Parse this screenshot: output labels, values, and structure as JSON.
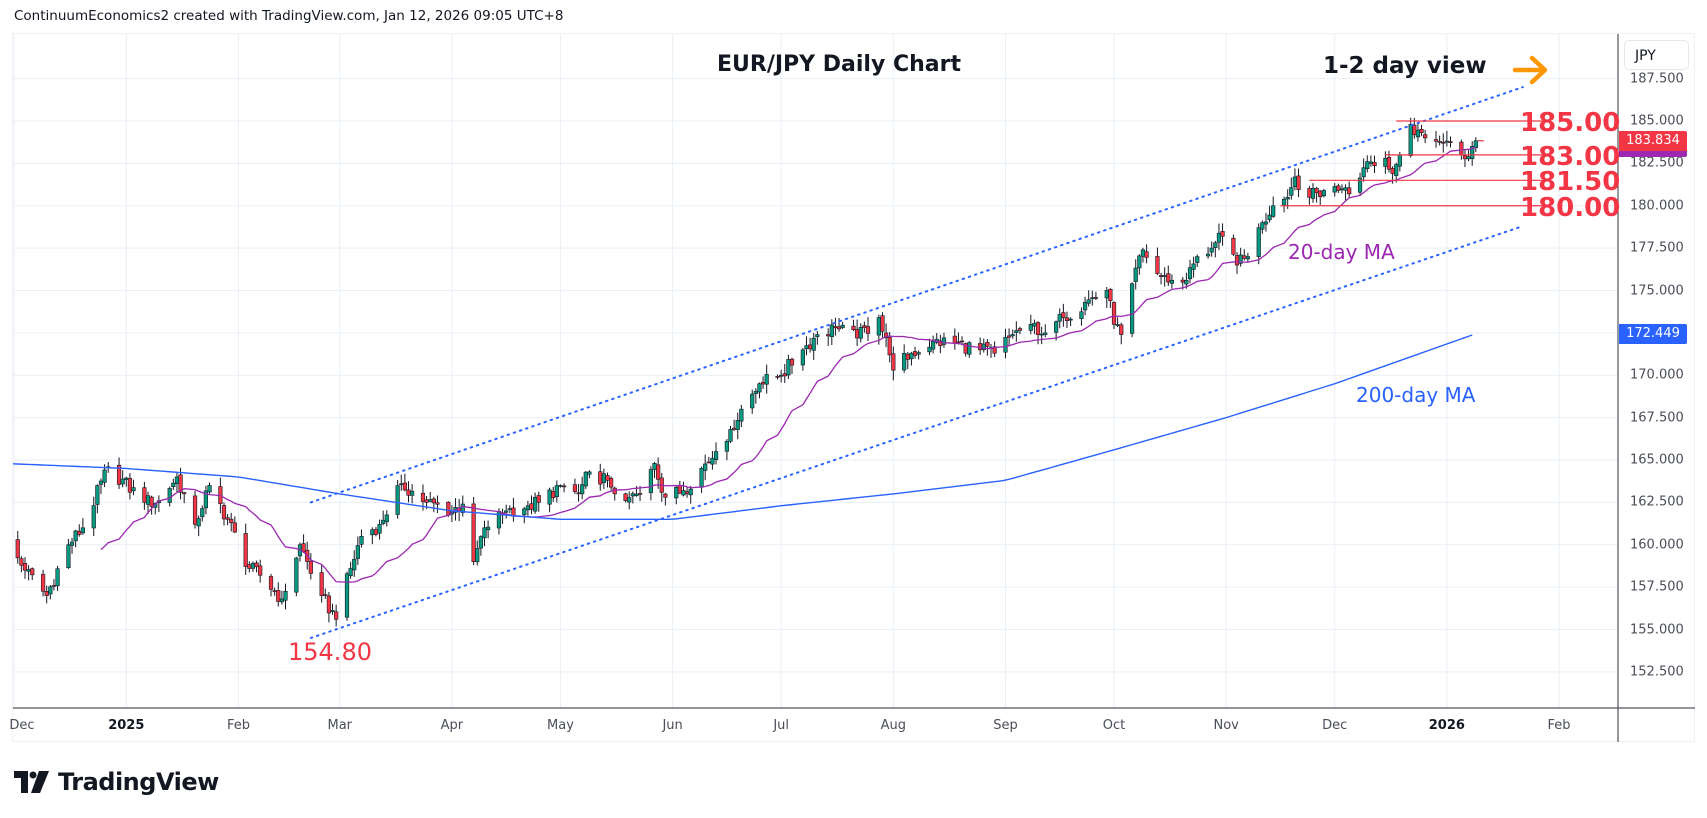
{
  "header": {
    "text": "ContinuumEconomics2 created with TradingView.com, Jan 12, 2026 09:05 UTC+8"
  },
  "footer": {
    "brand": "TradingView"
  },
  "colors": {
    "up": "#089981",
    "down": "#f23645",
    "ma20": "#9c27b0",
    "ma200": "#2962ff",
    "level": "#f23645",
    "channel": "#2962ff",
    "arrow": "#ff9800",
    "grid": "#e9eff6"
  },
  "chart_data": {
    "type": "candlestick",
    "title": "EUR/JPY Daily Chart",
    "subtitle": "1-2 day view",
    "currency": "JPY",
    "ylim": [
      151,
      189
    ],
    "y_ticks": [
      "152.500",
      "155.000",
      "157.500",
      "160.000",
      "162.500",
      "165.000",
      "167.500",
      "170.000",
      "172.500",
      "175.000",
      "177.500",
      "180.000",
      "182.500",
      "185.000",
      "187.500"
    ],
    "x_ticks": [
      {
        "date": "2024-12-01",
        "label": "Dec",
        "bold": false
      },
      {
        "date": "2025-01-01",
        "label": "2025",
        "bold": true
      },
      {
        "date": "2025-02-01",
        "label": "Feb",
        "bold": false
      },
      {
        "date": "2025-03-01",
        "label": "Mar",
        "bold": false
      },
      {
        "date": "2025-04-01",
        "label": "Apr",
        "bold": false
      },
      {
        "date": "2025-05-01",
        "label": "May",
        "bold": false
      },
      {
        "date": "2025-06-01",
        "label": "Jun",
        "bold": false
      },
      {
        "date": "2025-07-01",
        "label": "Jul",
        "bold": false
      },
      {
        "date": "2025-08-01",
        "label": "Aug",
        "bold": false
      },
      {
        "date": "2025-09-01",
        "label": "Sep",
        "bold": false
      },
      {
        "date": "2025-10-01",
        "label": "Oct",
        "bold": false
      },
      {
        "date": "2025-11-01",
        "label": "Nov",
        "bold": false
      },
      {
        "date": "2025-12-01",
        "label": "Dec",
        "bold": false
      },
      {
        "date": "2026-01-01",
        "label": "2026",
        "bold": true
      },
      {
        "date": "2026-02-01",
        "label": "Feb",
        "bold": false
      }
    ],
    "close_anchors": [
      [
        "2024-11-28",
        160.5
      ],
      [
        "2024-12-04",
        158.5
      ],
      [
        "2024-12-10",
        157.0
      ],
      [
        "2024-12-16",
        160.0
      ],
      [
        "2024-12-20",
        161.0
      ],
      [
        "2024-12-27",
        164.6
      ],
      [
        "2025-01-06",
        162.5
      ],
      [
        "2025-01-10",
        162.6
      ],
      [
        "2025-01-15",
        164.0
      ],
      [
        "2025-01-20",
        161.2
      ],
      [
        "2025-01-24",
        163.5
      ],
      [
        "2025-01-29",
        161.5
      ],
      [
        "2025-02-04",
        158.6
      ],
      [
        "2025-02-07",
        158.2
      ],
      [
        "2025-02-13",
        156.8
      ],
      [
        "2025-02-18",
        160.0
      ],
      [
        "2025-02-24",
        157.0
      ],
      [
        "2025-02-28",
        155.6
      ],
      [
        "2025-03-04",
        158.6
      ],
      [
        "2025-03-07",
        160.5
      ],
      [
        "2025-03-12",
        161.2
      ],
      [
        "2025-03-18",
        163.6
      ],
      [
        "2025-03-25",
        162.5
      ],
      [
        "2025-04-01",
        162.0
      ],
      [
        "2025-04-04",
        162.4
      ],
      [
        "2025-04-07",
        159.0
      ],
      [
        "2025-04-10",
        161.0
      ],
      [
        "2025-04-16",
        162.0
      ],
      [
        "2025-04-22",
        162.3
      ],
      [
        "2025-04-25",
        162.5
      ],
      [
        "2025-05-01",
        163.5
      ],
      [
        "2025-05-06",
        163.0
      ],
      [
        "2025-05-09",
        164.3
      ],
      [
        "2025-05-14",
        163.8
      ],
      [
        "2025-05-19",
        162.6
      ],
      [
        "2025-05-23",
        163.0
      ],
      [
        "2025-05-27",
        164.8
      ],
      [
        "2025-05-30",
        162.8
      ],
      [
        "2025-06-04",
        163.2
      ],
      [
        "2025-06-09",
        164.5
      ],
      [
        "2025-06-13",
        165.5
      ],
      [
        "2025-06-17",
        166.8
      ],
      [
        "2025-06-20",
        168.0
      ],
      [
        "2025-06-25",
        169.5
      ],
      [
        "2025-07-01",
        170.0
      ],
      [
        "2025-07-07",
        171.5
      ],
      [
        "2025-07-11",
        172.4
      ],
      [
        "2025-07-16",
        172.8
      ],
      [
        "2025-07-22",
        172.2
      ],
      [
        "2025-07-28",
        173.4
      ],
      [
        "2025-07-31",
        171.2
      ],
      [
        "2025-08-01",
        170.3
      ],
      [
        "2025-08-06",
        171.3
      ],
      [
        "2025-08-12",
        172.0
      ],
      [
        "2025-08-18",
        171.9
      ],
      [
        "2025-08-25",
        171.5
      ],
      [
        "2025-08-29",
        171.3
      ],
      [
        "2025-09-03",
        172.4
      ],
      [
        "2025-09-08",
        173.0
      ],
      [
        "2025-09-12",
        172.5
      ],
      [
        "2025-09-17",
        173.4
      ],
      [
        "2025-09-23",
        174.3
      ],
      [
        "2025-09-29",
        175.0
      ],
      [
        "2025-10-01",
        173.0
      ],
      [
        "2025-10-03",
        172.4
      ],
      [
        "2025-10-06",
        175.4
      ],
      [
        "2025-10-09",
        177.4
      ],
      [
        "2025-10-13",
        176.0
      ],
      [
        "2025-10-16",
        175.5
      ],
      [
        "2025-10-21",
        175.6
      ],
      [
        "2025-10-24",
        177.0
      ],
      [
        "2025-10-28",
        177.5
      ],
      [
        "2025-10-31",
        178.2
      ],
      [
        "2025-11-04",
        176.5
      ],
      [
        "2025-11-07",
        177.0
      ],
      [
        "2025-11-11",
        179.0
      ],
      [
        "2025-11-14",
        180.0
      ],
      [
        "2025-11-18",
        180.5
      ],
      [
        "2025-11-20",
        181.7
      ],
      [
        "2025-11-24",
        180.5
      ],
      [
        "2025-11-28",
        180.9
      ],
      [
        "2025-12-03",
        181.0
      ],
      [
        "2025-12-05",
        180.7
      ],
      [
        "2025-12-10",
        182.6
      ],
      [
        "2025-12-15",
        182.8
      ],
      [
        "2025-12-17",
        181.9
      ],
      [
        "2025-12-19",
        183.0
      ],
      [
        "2025-12-22",
        184.8
      ],
      [
        "2025-12-26",
        184.0
      ],
      [
        "2025-12-30",
        183.8
      ],
      [
        "2026-01-05",
        183.0
      ],
      [
        "2026-01-07",
        182.9
      ],
      [
        "2026-01-09",
        183.834
      ]
    ],
    "ma200_anchors": [
      [
        "2024-11-28",
        164.8
      ],
      [
        "2025-01-01",
        164.5
      ],
      [
        "2025-02-01",
        164.0
      ],
      [
        "2025-03-01",
        163.0
      ],
      [
        "2025-04-01",
        162.0
      ],
      [
        "2025-05-01",
        161.5
      ],
      [
        "2025-06-01",
        161.5
      ],
      [
        "2025-07-01",
        162.3
      ],
      [
        "2025-08-01",
        163.0
      ],
      [
        "2025-09-01",
        163.8
      ],
      [
        "2025-10-01",
        165.6
      ],
      [
        "2025-11-01",
        167.5
      ],
      [
        "2025-12-01",
        169.5
      ],
      [
        "2026-01-09",
        172.449
      ]
    ],
    "last_price": "183.834",
    "ma200_value": "172.449",
    "channel": {
      "upper": [
        [
          "2025-02-21",
          162.5
        ],
        [
          "2026-01-22",
          187.0
        ]
      ],
      "lower": [
        [
          "2025-02-21",
          154.5
        ],
        [
          "2026-01-22",
          178.8
        ]
      ]
    },
    "levels": [
      {
        "value": 185.0,
        "label": "185.00",
        "from": "2025-12-18"
      },
      {
        "value": 183.0,
        "label": "183.00",
        "from": "2025-12-15"
      },
      {
        "value": 181.5,
        "label": "181.50",
        "from": "2025-11-24"
      },
      {
        "value": 180.0,
        "label": "180.00",
        "from": "2025-11-16"
      }
    ],
    "levels_end": "2026-01-28",
    "annotations": {
      "ma20_label": "20-day MA",
      "ma200_label": "200-day MA",
      "low_label": "154.80",
      "arrow_icon": "arrow-right-icon"
    }
  }
}
